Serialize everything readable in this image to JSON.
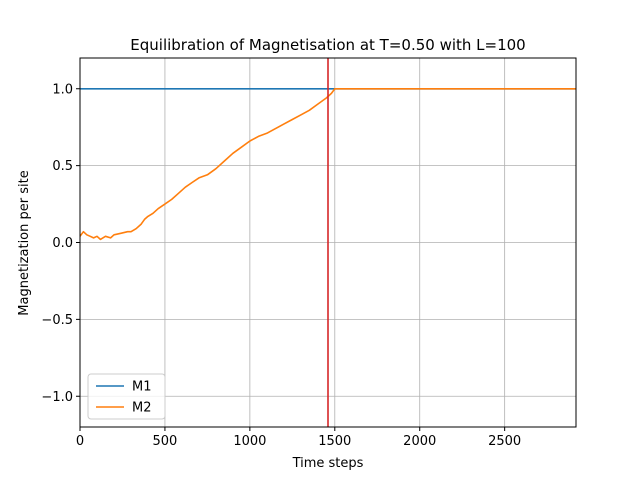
{
  "chart_data": {
    "type": "line",
    "title": "Equilibration of Magnetisation at T=0.50 with L=100",
    "xlabel": "Time steps",
    "ylabel": "Magnetization per site",
    "xlim": [
      0,
      2920
    ],
    "ylim": [
      -1.2,
      1.2
    ],
    "x_ticks": [
      0,
      500,
      1000,
      1500,
      2000,
      2500
    ],
    "x_tick_labels": [
      "0",
      "500",
      "1000",
      "1500",
      "2000",
      "2500"
    ],
    "y_ticks": [
      -1.0,
      -0.5,
      0.0,
      0.5,
      1.0
    ],
    "y_tick_labels": [
      "−1.0",
      "−0.5",
      "0.0",
      "0.5",
      "1.0"
    ],
    "grid": true,
    "legend_position": "bottom-left",
    "vline": {
      "x": 1460,
      "color": "#d62728"
    },
    "series": [
      {
        "name": "M1",
        "color": "#1f77b4",
        "x": [
          0,
          2920
        ],
        "y": [
          1.0,
          1.0
        ]
      },
      {
        "name": " M2",
        "color": "#ff7f0e",
        "x": [
          0,
          20,
          40,
          60,
          80,
          100,
          120,
          150,
          180,
          200,
          240,
          280,
          300,
          330,
          360,
          380,
          400,
          430,
          460,
          500,
          540,
          580,
          620,
          660,
          700,
          750,
          800,
          850,
          900,
          950,
          1000,
          1050,
          1100,
          1150,
          1200,
          1250,
          1300,
          1350,
          1400,
          1450,
          1480,
          1500,
          1600,
          1800,
          2000,
          2200,
          2500,
          2920
        ],
        "y": [
          0.04,
          0.07,
          0.05,
          0.04,
          0.03,
          0.04,
          0.02,
          0.04,
          0.03,
          0.05,
          0.06,
          0.07,
          0.07,
          0.09,
          0.12,
          0.15,
          0.17,
          0.19,
          0.22,
          0.25,
          0.28,
          0.32,
          0.36,
          0.39,
          0.42,
          0.44,
          0.48,
          0.53,
          0.58,
          0.62,
          0.66,
          0.69,
          0.71,
          0.74,
          0.77,
          0.8,
          0.83,
          0.86,
          0.9,
          0.94,
          0.97,
          1.0,
          1.0,
          1.0,
          1.0,
          1.0,
          1.0,
          1.0
        ]
      }
    ]
  }
}
